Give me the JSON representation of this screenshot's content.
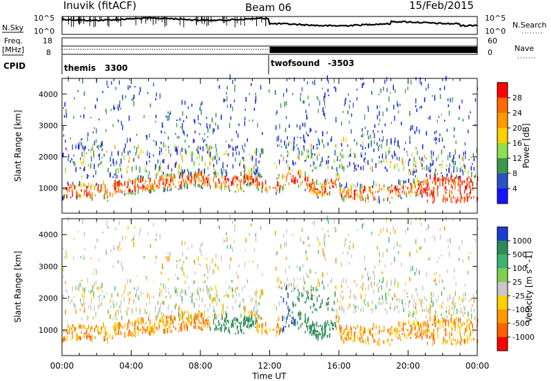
{
  "header": {
    "station": "Inuvik (fitACF)",
    "beam": "Beam 06",
    "date": "15/Feb/2015"
  },
  "top_panels": {
    "nsky_label": "N.Sky",
    "nsearch_label": "N.Search",
    "nsky_ticks": [
      "10^5",
      "10^0"
    ],
    "nsearch_ticks": [
      "10^5",
      "10^0"
    ],
    "freq_label_1": "Freq.",
    "freq_label_2": "[MHz]",
    "freq_ticks": [
      "18",
      "8"
    ],
    "nave_label": "Nave",
    "nave_ticks": [
      "60",
      "0"
    ],
    "cpid_label": "CPID",
    "cpid_modes": [
      {
        "name": "themis",
        "id": "3300"
      },
      {
        "name": "twofsound",
        "id": "-3503"
      }
    ]
  },
  "chart_data": [
    {
      "type": "heatmap",
      "title": "",
      "ylabel": "Slant Range [km]",
      "xlabel": "",
      "ylim": [
        200,
        4500
      ],
      "xlim": [
        0,
        24
      ],
      "yticks": [
        "1000",
        "2000",
        "3000",
        "4000"
      ],
      "colorbar_label": "Power [dB]",
      "colorbar_ticks": [
        "28",
        "24",
        "20",
        "16",
        "12",
        "8",
        "4"
      ],
      "colorbar_colors": [
        "#ff0000",
        "#ff6a00",
        "#ff9a00",
        "#ffd000",
        "#8ee04a",
        "#3a9a4a",
        "#2a52c8",
        "#1414ff"
      ]
    },
    {
      "type": "heatmap",
      "title": "",
      "ylabel": "Slant Range [km]",
      "xlabel": "Time UT",
      "ylim": [
        200,
        4500
      ],
      "xlim": [
        0,
        24
      ],
      "yticks": [
        "1000",
        "2000",
        "3000",
        "4000"
      ],
      "xticks": [
        "00:00",
        "04:00",
        "08:00",
        "12:00",
        "16:00",
        "20:00",
        "00:00"
      ],
      "colorbar_label": "Velocity [m s^-1]",
      "colorbar_ticks": [
        "1000",
        "500",
        "100",
        "25",
        "-25",
        "-100",
        "-500",
        "-1000"
      ],
      "colorbar_colors": [
        "#1a3fd0",
        "#2e8b57",
        "#3cb371",
        "#7ed050",
        "#c8c8c8",
        "#ffd000",
        "#ff9a00",
        "#ff6000",
        "#ff0000"
      ]
    }
  ]
}
